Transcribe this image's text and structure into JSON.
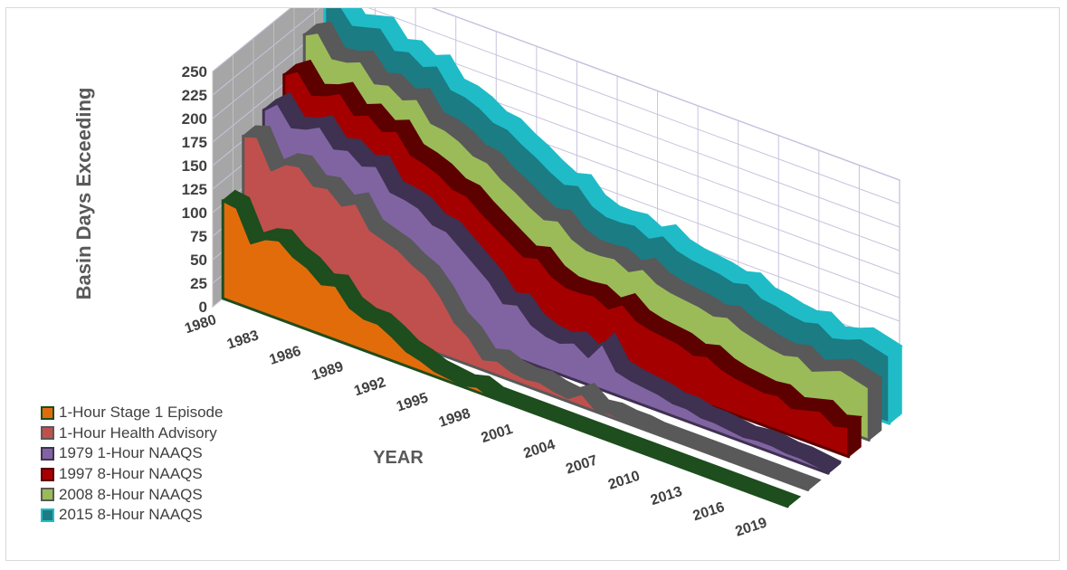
{
  "chart_data": {
    "type": "area",
    "title": "",
    "xlabel": "YEAR",
    "ylabel": "Basin Days Exceeding",
    "ylim": [
      0,
      250
    ],
    "yticks": [
      0,
      25,
      50,
      75,
      100,
      125,
      150,
      175,
      200,
      225,
      250
    ],
    "x": [
      1980,
      1981,
      1982,
      1983,
      1984,
      1985,
      1986,
      1987,
      1988,
      1989,
      1990,
      1991,
      1992,
      1993,
      1994,
      1995,
      1996,
      1997,
      1998,
      1999,
      2000,
      2001,
      2002,
      2003,
      2004,
      2005,
      2006,
      2007,
      2008,
      2009,
      2010,
      2011,
      2012,
      2013,
      2014,
      2015,
      2016,
      2017,
      2018,
      2019,
      2020
    ],
    "x_tick_labels": [
      "1980",
      "1983",
      "1986",
      "1989",
      "1992",
      "1995",
      "1998",
      "2001",
      "2004",
      "2007",
      "2010",
      "2013",
      "2016",
      "2019"
    ],
    "grid": true,
    "legend_position": "bottom-left",
    "series": [
      {
        "name": "1-Hour Stage 1 Episode",
        "color": "#e36c0a",
        "edge": "#1e4d1e",
        "values": [
          104,
          102,
          70,
          80,
          84,
          72,
          66,
          54,
          58,
          40,
          34,
          34,
          26,
          16,
          12,
          6,
          4,
          2,
          6,
          0,
          0,
          0,
          0,
          0,
          0,
          0,
          0,
          0,
          0,
          0,
          0,
          0,
          0,
          0,
          0,
          0,
          0,
          0,
          0,
          0,
          0
        ]
      },
      {
        "name": "1-Hour Health Advisory",
        "color": "#c0504d",
        "edge": "#595959",
        "values": [
          155,
          160,
          130,
          142,
          145,
          130,
          133,
          120,
          128,
          105,
          100,
          95,
          85,
          78,
          62,
          40,
          30,
          12,
          16,
          10,
          8,
          10,
          6,
          4,
          14,
          2,
          4,
          2,
          2,
          0,
          0,
          0,
          0,
          0,
          0,
          0,
          0,
          0,
          0,
          0,
          0
        ]
      },
      {
        "name": "1979 1-Hour NAAQS",
        "color": "#8064a2",
        "edge": "#3f3151",
        "values": [
          165,
          178,
          158,
          162,
          170,
          152,
          156,
          145,
          150,
          128,
          126,
          122,
          110,
          108,
          96,
          84,
          72,
          54,
          58,
          42,
          36,
          34,
          40,
          30,
          50,
          26,
          22,
          20,
          18,
          14,
          14,
          10,
          10,
          8,
          6,
          8,
          8,
          6,
          6,
          4,
          2
        ]
      },
      {
        "name": "1997 8-Hour NAAQS",
        "color": "#a50000",
        "edge": "#5c0000",
        "values": [
          185,
          195,
          175,
          180,
          188,
          170,
          176,
          164,
          170,
          150,
          146,
          140,
          130,
          128,
          116,
          106,
          96,
          86,
          90,
          76,
          70,
          70,
          72,
          64,
          74,
          62,
          58,
          56,
          54,
          48,
          52,
          44,
          40,
          38,
          36,
          38,
          30,
          34,
          38,
          28,
          32
        ]
      },
      {
        "name": "2008 8-Hour NAAQS",
        "color": "#9bbb59",
        "edge": "#595959",
        "values": [
          210,
          218,
          196,
          198,
          204,
          186,
          190,
          180,
          186,
          166,
          164,
          158,
          148,
          146,
          134,
          126,
          116,
          108,
          112,
          98,
          92,
          92,
          94,
          86,
          94,
          84,
          80,
          78,
          76,
          72,
          76,
          68,
          64,
          60,
          58,
          62,
          52,
          58,
          64,
          60,
          56
        ]
      },
      {
        "name": "2015 8-Hour NAAQS",
        "color": "#1b7c84",
        "edge": "#1fbcc8",
        "values": [
          230,
          232,
          214,
          218,
          222,
          204,
          208,
          198,
          204,
          184,
          182,
          176,
          166,
          164,
          154,
          146,
          136,
          128,
          132,
          116,
          110,
          110,
          112,
          104,
          112,
          102,
          98,
          96,
          94,
          90,
          94,
          84,
          82,
          78,
          76,
          80,
          70,
          74,
          80,
          76,
          72
        ]
      }
    ]
  }
}
